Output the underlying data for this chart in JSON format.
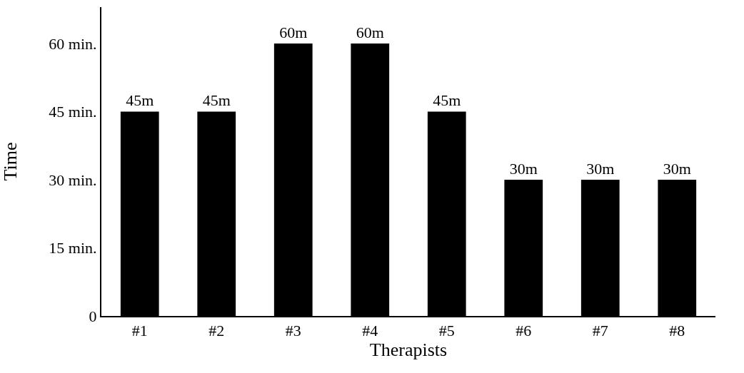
{
  "chart_data": {
    "type": "bar",
    "xlabel": "Therapists",
    "ylabel": "Time",
    "categories": [
      "#1",
      "#2",
      "#3",
      "#4",
      "#5",
      "#6",
      "#7",
      "#8"
    ],
    "values": [
      45,
      45,
      60,
      60,
      45,
      30,
      30,
      30
    ],
    "value_labels": [
      "45m",
      "45m",
      "60m",
      "60m",
      "45m",
      "30m",
      "30m",
      "30m"
    ],
    "color": "#000000",
    "ylim": [
      0,
      68
    ],
    "yticks": [
      0,
      {
        "value": 15,
        "label": "15 min."
      },
      {
        "value": 30,
        "label": "30 min."
      },
      {
        "value": 45,
        "label": "45 min."
      },
      {
        "value": 60,
        "label": "60 min."
      }
    ]
  }
}
